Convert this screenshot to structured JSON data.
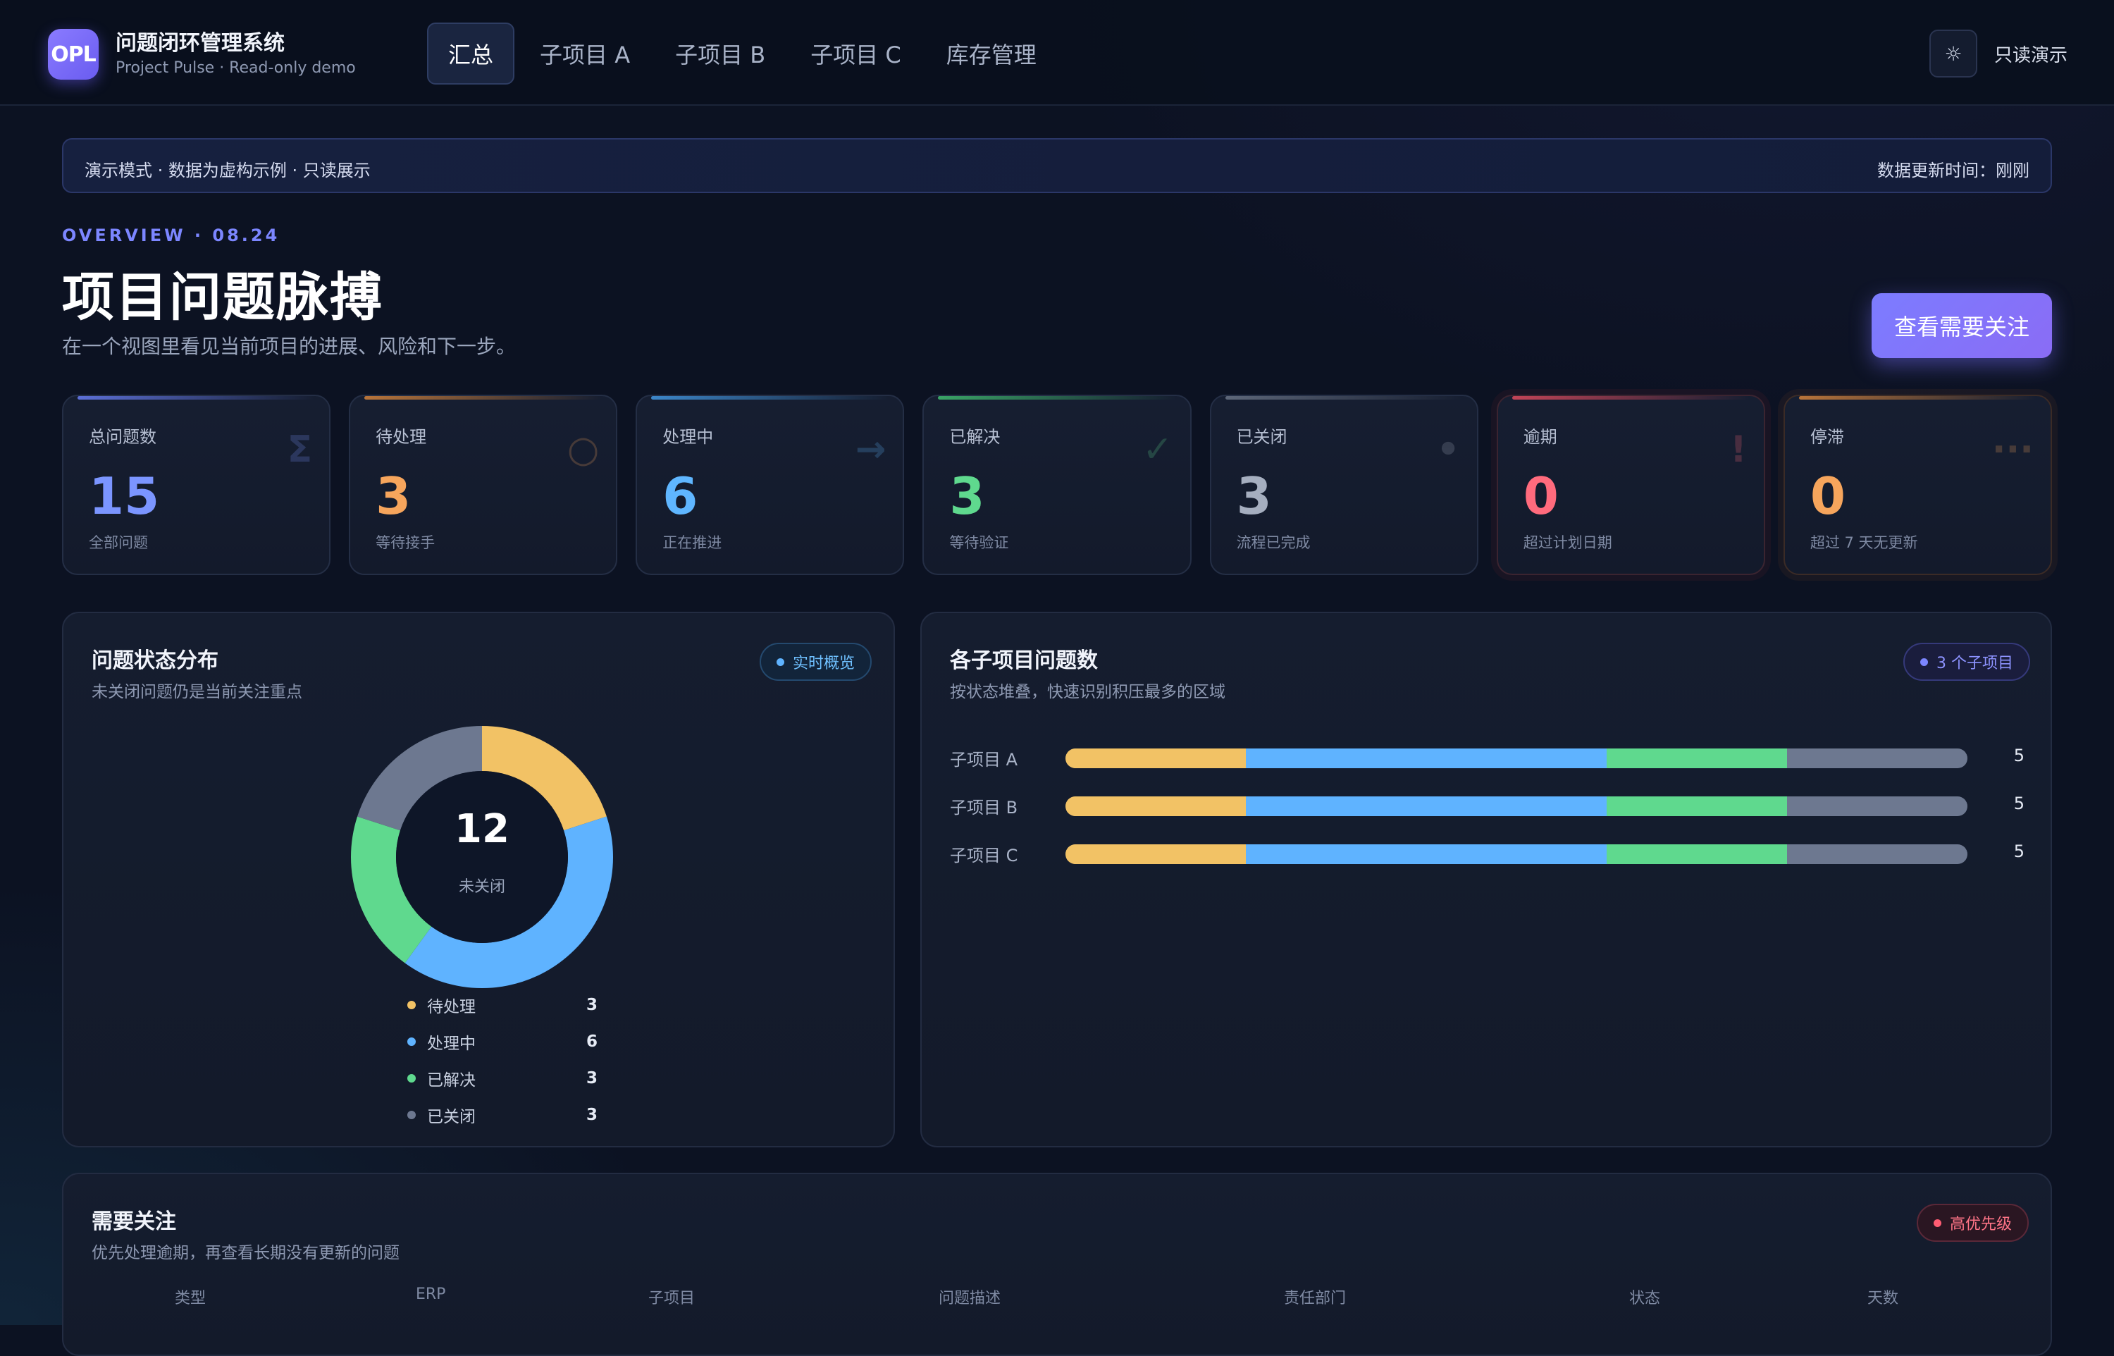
{
  "header": {
    "logo_text": "OPL",
    "app_title": "问题闭环管理系统",
    "app_subtitle": "Project Pulse · Read-only demo",
    "tabs": [
      {
        "label": "汇总",
        "active": true
      },
      {
        "label": "子项目 A",
        "active": false
      },
      {
        "label": "子项目 B",
        "active": false
      },
      {
        "label": "子项目 C",
        "active": false
      },
      {
        "label": "库存管理",
        "active": false
      }
    ],
    "theme_icon": "sun-icon",
    "readonly_label": "只读演示"
  },
  "banner": {
    "left": "演示模式 · 数据为虚构示例 · 只读展示",
    "right": "数据更新时间：刚刚"
  },
  "page": {
    "eyebrow": "OVERVIEW · 08.24",
    "title": "项目问题脉搏",
    "subtitle": "在一个视图里看见当前项目的进展、风险和下一步。",
    "cta_label": "查看需要关注"
  },
  "stats": [
    {
      "label": "总问题数",
      "value": "15",
      "sub": "全部问题",
      "icon": "Σ",
      "icon_name": "sigma-icon",
      "color": "#7b95ff",
      "bar": "#5c6fd6"
    },
    {
      "label": "待处理",
      "value": "3",
      "sub": "等待接手",
      "icon": "○",
      "icon_name": "circle-icon",
      "color": "#f6a55c",
      "bar": "#b8743a"
    },
    {
      "label": "处理中",
      "value": "6",
      "sub": "正在推进",
      "icon": "→",
      "icon_name": "arrow-right-icon",
      "color": "#5fb6ff",
      "bar": "#3c86c9"
    },
    {
      "label": "已解决",
      "value": "3",
      "sub": "等待验证",
      "icon": "✓",
      "icon_name": "check-icon",
      "color": "#5fd98e",
      "bar": "#3aa466"
    },
    {
      "label": "已关闭",
      "value": "3",
      "sub": "流程已完成",
      "icon": "•",
      "icon_name": "dot-icon",
      "color": "#a5aebf",
      "bar": "#5d6678"
    },
    {
      "label": "逾期",
      "value": "0",
      "sub": "超过计划日期",
      "icon": "!",
      "icon_name": "alert-icon",
      "color": "#ff6b7d",
      "bar": "#c24457"
    },
    {
      "label": "停滞",
      "value": "0",
      "sub": "超过 7 天无更新",
      "icon": "···",
      "icon_name": "ellipsis-icon",
      "color": "#f6a55c",
      "bar": "#b8743a"
    }
  ],
  "status_panel": {
    "title": "问题状态分布",
    "subtitle": "未关闭问题仍是当前关注重点",
    "pill": "实时概览",
    "center_value": "12",
    "center_label": "未关闭",
    "legend": [
      {
        "name": "待处理",
        "value": 3,
        "color": "#f2c265"
      },
      {
        "name": "处理中",
        "value": 6,
        "color": "#5fb3ff"
      },
      {
        "name": "已解决",
        "value": 3,
        "color": "#5fd98e"
      },
      {
        "name": "已关闭",
        "value": 3,
        "color": "#6d7890"
      }
    ]
  },
  "subproject_panel": {
    "title": "各子项目问题数",
    "subtitle": "按状态堆叠，快速识别积压最多的区域",
    "pill": "3 个子项目"
  },
  "attention_panel": {
    "title": "需要关注",
    "subtitle": "优先处理逾期，再查看长期没有更新的问题",
    "pill": "高优先级",
    "columns": [
      "类型",
      "ERP",
      "子项目",
      "问题描述",
      "责任部门",
      "状态",
      "天数"
    ]
  },
  "chart_data": [
    {
      "type": "pie",
      "title": "问题状态分布",
      "categories": [
        "待处理",
        "处理中",
        "已解决",
        "已关闭"
      ],
      "values": [
        3,
        6,
        3,
        3
      ],
      "colors": [
        "#f2c265",
        "#5fb3ff",
        "#5fd98e",
        "#6d7890"
      ]
    },
    {
      "type": "bar",
      "title": "各子项目问题数",
      "orientation": "horizontal",
      "stacked": true,
      "categories": [
        "子项目 A",
        "子项目 B",
        "子项目 C"
      ],
      "series": [
        {
          "name": "待处理",
          "values": [
            1,
            1,
            1
          ],
          "color": "#f2c265"
        },
        {
          "name": "处理中",
          "values": [
            2,
            2,
            2
          ],
          "color": "#5fb3ff"
        },
        {
          "name": "已解决",
          "values": [
            1,
            1,
            1
          ],
          "color": "#5fd98e"
        },
        {
          "name": "已关闭",
          "values": [
            1,
            1,
            1
          ],
          "color": "#6d7890"
        }
      ],
      "totals": [
        5,
        5,
        5
      ]
    }
  ]
}
